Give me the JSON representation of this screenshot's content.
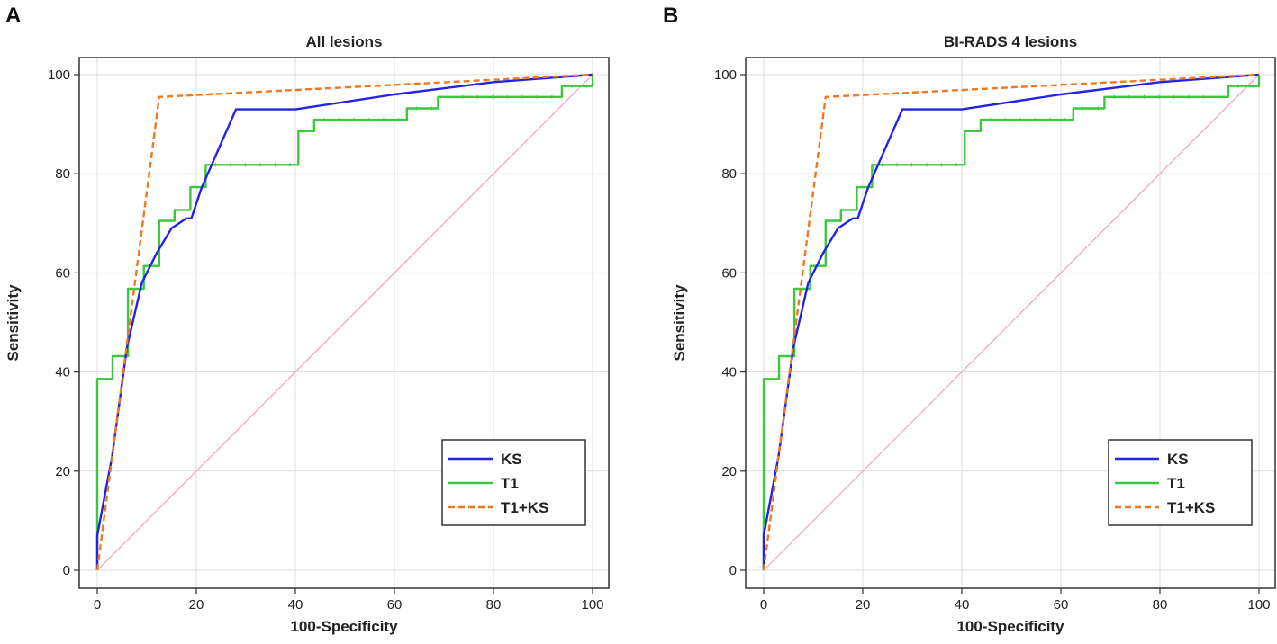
{
  "panels": [
    {
      "letter": "A"
    },
    {
      "letter": "B"
    }
  ],
  "chart_data": [
    {
      "type": "line",
      "title": "All lesions",
      "xlabel": "100-Specificity",
      "ylabel": "Sensitivity",
      "xlim": [
        0,
        100
      ],
      "ylim": [
        0,
        100
      ],
      "xticks": [
        0,
        20,
        40,
        60,
        80,
        100
      ],
      "yticks": [
        0,
        20,
        40,
        60,
        80,
        100
      ],
      "grid": true,
      "legend": "bottom-right",
      "diagonal": {
        "color": "#e8a8b0",
        "points": [
          [
            0,
            0
          ],
          [
            100,
            100
          ]
        ]
      },
      "series": [
        {
          "name": "KS",
          "color": "#2323e6",
          "dash": "solid",
          "points": [
            [
              0,
              0
            ],
            [
              0,
              7
            ],
            [
              3,
              23
            ],
            [
              6,
              45
            ],
            [
              9,
              58
            ],
            [
              12,
              64
            ],
            [
              15,
              69
            ],
            [
              18,
              71
            ],
            [
              19,
              71
            ],
            [
              21,
              77
            ],
            [
              28,
              93
            ],
            [
              40,
              93
            ],
            [
              60,
              96
            ],
            [
              80,
              98.5
            ],
            [
              100,
              100
            ]
          ]
        },
        {
          "name": "T1",
          "color": "#3cc83c",
          "dash": "solid",
          "points": [
            [
              0,
              0
            ],
            [
              0,
              38.6
            ],
            [
              3.1,
              38.6
            ],
            [
              3.1,
              43.2
            ],
            [
              6.2,
              43.2
            ],
            [
              6.2,
              56.8
            ],
            [
              9.4,
              56.8
            ],
            [
              9.4,
              61.4
            ],
            [
              12.5,
              61.4
            ],
            [
              12.5,
              70.5
            ],
            [
              15.6,
              70.5
            ],
            [
              15.6,
              72.7
            ],
            [
              18.8,
              72.7
            ],
            [
              18.8,
              77.3
            ],
            [
              21.9,
              77.3
            ],
            [
              21.9,
              81.8
            ],
            [
              40.6,
              81.8
            ],
            [
              40.6,
              88.6
            ],
            [
              43.8,
              88.6
            ],
            [
              43.8,
              90.9
            ],
            [
              62.5,
              90.9
            ],
            [
              62.5,
              93.2
            ],
            [
              68.8,
              93.2
            ],
            [
              68.8,
              95.5
            ],
            [
              93.8,
              95.5
            ],
            [
              93.8,
              97.7
            ],
            [
              100,
              97.7
            ],
            [
              100,
              100
            ]
          ]
        },
        {
          "name": "T1+KS",
          "color": "#f07820",
          "dash": "dashed",
          "points": [
            [
              0,
              0
            ],
            [
              12.5,
              95.5
            ],
            [
              100,
              100
            ]
          ]
        }
      ]
    },
    {
      "type": "line",
      "title": "BI-RADS 4 lesions",
      "xlabel": "100-Specificity",
      "ylabel": "Sensitivity",
      "xlim": [
        0,
        100
      ],
      "ylim": [
        0,
        100
      ],
      "xticks": [
        0,
        20,
        40,
        60,
        80,
        100
      ],
      "yticks": [
        0,
        20,
        40,
        60,
        80,
        100
      ],
      "grid": true,
      "legend": "bottom-right",
      "diagonal": {
        "color": "#e8a8b0",
        "points": [
          [
            0,
            0
          ],
          [
            100,
            100
          ]
        ]
      },
      "series": [
        {
          "name": "KS",
          "color": "#2323e6",
          "dash": "solid",
          "points": [
            [
              0,
              0
            ],
            [
              0,
              7
            ],
            [
              3,
              23
            ],
            [
              6,
              45
            ],
            [
              9,
              58
            ],
            [
              12,
              64
            ],
            [
              15,
              69
            ],
            [
              18,
              71
            ],
            [
              19,
              71
            ],
            [
              21,
              77
            ],
            [
              28,
              93
            ],
            [
              40,
              93
            ],
            [
              60,
              96
            ],
            [
              80,
              98.5
            ],
            [
              100,
              100
            ]
          ]
        },
        {
          "name": "T1",
          "color": "#3cc83c",
          "dash": "solid",
          "points": [
            [
              0,
              0
            ],
            [
              0,
              38.6
            ],
            [
              3.1,
              38.6
            ],
            [
              3.1,
              43.2
            ],
            [
              6.2,
              43.2
            ],
            [
              6.2,
              56.8
            ],
            [
              9.4,
              56.8
            ],
            [
              9.4,
              61.4
            ],
            [
              12.5,
              61.4
            ],
            [
              12.5,
              70.5
            ],
            [
              15.6,
              70.5
            ],
            [
              15.6,
              72.7
            ],
            [
              18.8,
              72.7
            ],
            [
              18.8,
              77.3
            ],
            [
              21.9,
              77.3
            ],
            [
              21.9,
              81.8
            ],
            [
              40.6,
              81.8
            ],
            [
              40.6,
              88.6
            ],
            [
              43.8,
              88.6
            ],
            [
              43.8,
              90.9
            ],
            [
              62.5,
              90.9
            ],
            [
              62.5,
              93.2
            ],
            [
              68.8,
              93.2
            ],
            [
              68.8,
              95.5
            ],
            [
              93.8,
              95.5
            ],
            [
              93.8,
              97.7
            ],
            [
              100,
              97.7
            ],
            [
              100,
              100
            ]
          ]
        },
        {
          "name": "T1+KS",
          "color": "#f07820",
          "dash": "dashed",
          "points": [
            [
              0,
              0
            ],
            [
              12.5,
              95.5
            ],
            [
              100,
              100
            ]
          ]
        }
      ]
    }
  ]
}
